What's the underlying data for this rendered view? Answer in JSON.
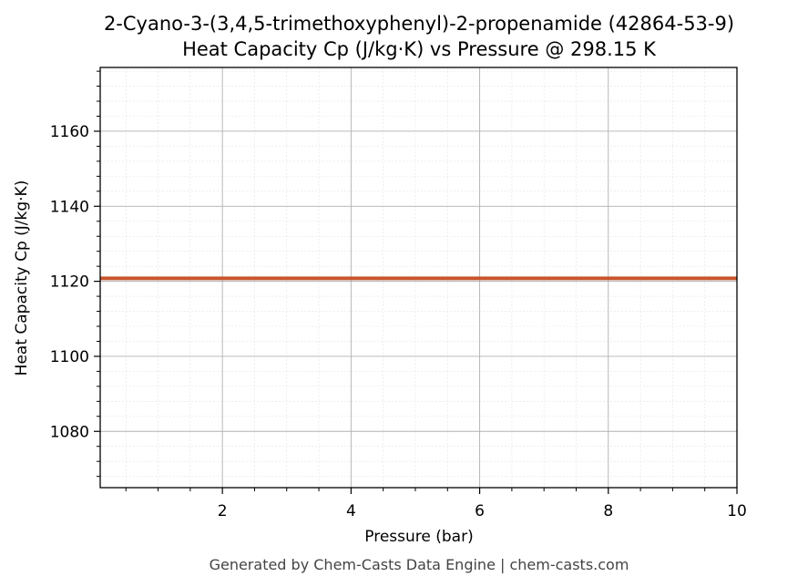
{
  "chart_data": {
    "type": "line",
    "title_line1": "2-Cyano-3-(3,4,5-trimethoxyphenyl)-2-propenamide (42864-53-9)",
    "title_line2": "Heat Capacity Cp (J/kg·K) vs Pressure @ 298.15 K",
    "xlabel": "Pressure (bar)",
    "ylabel": "Heat Capacity Cp (J/kg·K)",
    "xlim": [
      0.1,
      10
    ],
    "ylim": [
      1065,
      1177
    ],
    "xticks": [
      2,
      4,
      6,
      8,
      10
    ],
    "yticks": [
      1080,
      1100,
      1120,
      1140,
      1160
    ],
    "grid": true,
    "series": [
      {
        "color": "#c8552d",
        "x": [
          0.1,
          10
        ],
        "y": [
          1120.8,
          1120.8
        ]
      }
    ]
  },
  "footer": "Generated by Chem-Casts Data Engine | chem-casts.com"
}
